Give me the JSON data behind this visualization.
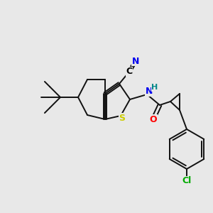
{
  "bg_color": "#e8e8e8",
  "fig_width": 3.0,
  "fig_height": 3.0,
  "dpi": 100,
  "atom_colors": {
    "N": "#0000ee",
    "S": "#cccc00",
    "O": "#ff0000",
    "Cl": "#00aa00",
    "H": "#008888",
    "C": "#000000",
    "default": "#000000"
  },
  "bond_color": "#111111",
  "bond_width": 1.4,
  "font_size_atom": 8.5
}
